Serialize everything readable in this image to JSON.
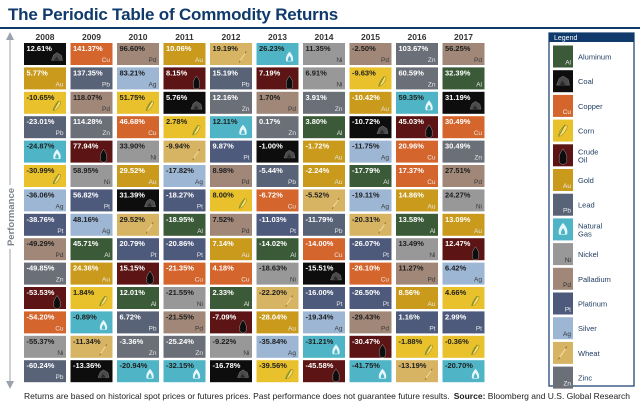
{
  "title": "The Periodic Table of Commodity Returns",
  "footnote": "Returns are based on historical spot prices or futures prices. Past performance does not guarantee future results.",
  "source_label": "Source:",
  "source_text": "Bloomberg and U.S. Global Research",
  "chart_data": {
    "type": "table",
    "ylabel": "Performance",
    "years": [
      "2008",
      "2009",
      "2010",
      "2011",
      "2012",
      "2013",
      "2014",
      "2015",
      "2016",
      "2017"
    ],
    "columns": [
      [
        [
          "Coal",
          "12.61%"
        ],
        [
          "Gold",
          "5.77%"
        ],
        [
          "Corn",
          "-10.65%"
        ],
        [
          "Lead",
          "-23.01%"
        ],
        [
          "Natural Gas",
          "-24.87%"
        ],
        [
          "Corn",
          "-30.99%"
        ],
        [
          "Silver",
          "-36.06%"
        ],
        [
          "Platinum",
          "-38.76%"
        ],
        [
          "Palladium",
          "-49.29%"
        ],
        [
          "Zinc",
          "-49.85%"
        ],
        [
          "Crude Oil",
          "-53.53%"
        ],
        [
          "Copper",
          "-54.20%"
        ],
        [
          "Nickel",
          "-55.37%"
        ],
        [
          "Lead",
          "-60.24%"
        ]
      ],
      [
        [
          "Copper",
          "141.37%"
        ],
        [
          "Lead",
          "137.35%"
        ],
        [
          "Palladium",
          "118.07%"
        ],
        [
          "Zinc",
          "114.28%"
        ],
        [
          "Crude Oil",
          "77.94%"
        ],
        [
          "Nickel",
          "58.95%"
        ],
        [
          "Platinum",
          "56.82%"
        ],
        [
          "Silver",
          "48.16%"
        ],
        [
          "Aluminum",
          "45.71%"
        ],
        [
          "Gold",
          "24.36%"
        ],
        [
          "Corn",
          "1.84%"
        ],
        [
          "Natural Gas",
          "-0.89%"
        ],
        [
          "Wheat",
          "-11.34%"
        ],
        [
          "Coal",
          "-13.36%"
        ]
      ],
      [
        [
          "Palladium",
          "96.60%"
        ],
        [
          "Silver",
          "83.21%"
        ],
        [
          "Corn",
          "51.75%"
        ],
        [
          "Copper",
          "46.68%"
        ],
        [
          "Nickel",
          "33.90%"
        ],
        [
          "Gold",
          "29.52%"
        ],
        [
          "Coal",
          "31.39%"
        ],
        [
          "Wheat",
          "29.52%"
        ],
        [
          "Platinum",
          "20.79%"
        ],
        [
          "Crude Oil",
          "15.15%"
        ],
        [
          "Aluminum",
          "12.01%"
        ],
        [
          "Lead",
          "6.72%"
        ],
        [
          "Zinc",
          "-3.36%"
        ],
        [
          "Natural Gas",
          "-20.94%"
        ]
      ],
      [
        [
          "Gold",
          "10.06%"
        ],
        [
          "Crude Oil",
          "8.15%"
        ],
        [
          "Coal",
          "5.76%"
        ],
        [
          "Corn",
          "2.78%"
        ],
        [
          "Wheat",
          "-9.94%"
        ],
        [
          "Silver",
          "-17.82%"
        ],
        [
          "Platinum",
          "-18.27%"
        ],
        [
          "Aluminum",
          "-18.95%"
        ],
        [
          "Platinum",
          "-20.86%"
        ],
        [
          "Copper",
          "-21.35%"
        ],
        [
          "Nickel",
          "-21.55%"
        ],
        [
          "Palladium",
          "-21.55%"
        ],
        [
          "Zinc",
          "-25.24%"
        ],
        [
          "Natural Gas",
          "-32.15%"
        ]
      ],
      [
        [
          "Wheat",
          "19.19%"
        ],
        [
          "Lead",
          "15.19%"
        ],
        [
          "Zinc",
          "12.16%"
        ],
        [
          "Natural Gas",
          "12.11%"
        ],
        [
          "Platinum",
          "9.87%"
        ],
        [
          "Palladium",
          "8.98%"
        ],
        [
          "Corn",
          "8.00%"
        ],
        [
          "Palladium",
          "7.52%"
        ],
        [
          "Gold",
          "7.14%"
        ],
        [
          "Copper",
          "4.18%"
        ],
        [
          "Aluminum",
          "2.33%"
        ],
        [
          "Crude Oil",
          "-7.09%"
        ],
        [
          "Nickel",
          "-9.22%"
        ],
        [
          "Coal",
          "-16.78%"
        ]
      ],
      [
        [
          "Natural Gas",
          "26.23%"
        ],
        [
          "Crude Oil",
          "7.19%"
        ],
        [
          "Palladium",
          "1.70%"
        ],
        [
          "Zinc",
          "0.17%"
        ],
        [
          "Coal",
          "-1.00%"
        ],
        [
          "Lead",
          "-5.44%"
        ],
        [
          "Copper",
          "-6.72%"
        ],
        [
          "Platinum",
          "-11.03%"
        ],
        [
          "Aluminum",
          "-14.02%"
        ],
        [
          "Nickel",
          "-18.63%"
        ],
        [
          "Wheat",
          "-22.20%"
        ],
        [
          "Gold",
          "-28.04%"
        ],
        [
          "Silver",
          "-35.84%"
        ],
        [
          "Corn",
          "-39.56%"
        ]
      ],
      [
        [
          "Nickel",
          "11.35%"
        ],
        [
          "Nickel",
          "6.91%"
        ],
        [
          "Zinc",
          "3.91%"
        ],
        [
          "Aluminum",
          "3.80%"
        ],
        [
          "Gold",
          "-1.72%"
        ],
        [
          "Gold",
          "-2.24%"
        ],
        [
          "Wheat",
          "-5.52%"
        ],
        [
          "Lead",
          "-11.79%"
        ],
        [
          "Copper",
          "-14.00%"
        ],
        [
          "Coal",
          "-15.51%"
        ],
        [
          "Platinum",
          "-16.00%"
        ],
        [
          "Silver",
          "-19.34%"
        ],
        [
          "Natural Gas",
          "-31.21%"
        ],
        [
          "Crude Oil",
          "-45.58%"
        ]
      ],
      [
        [
          "Palladium",
          "-2.50%"
        ],
        [
          "Corn",
          "-9.63%"
        ],
        [
          "Gold",
          "-10.42%"
        ],
        [
          "Coal",
          "-10.72%"
        ],
        [
          "Silver",
          "-11.75%"
        ],
        [
          "Aluminum",
          "-17.79%"
        ],
        [
          "Silver",
          "-19.11%"
        ],
        [
          "Wheat",
          "-20.31%"
        ],
        [
          "Platinum",
          "-26.07%"
        ],
        [
          "Copper",
          "-26.10%"
        ],
        [
          "Platinum",
          "-26.50%"
        ],
        [
          "Palladium",
          "-29.43%"
        ],
        [
          "Crude Oil",
          "-30.47%"
        ],
        [
          "Natural Gas",
          "-41.75%"
        ]
      ],
      [
        [
          "Zinc",
          "103.67%"
        ],
        [
          "Zinc",
          "60.59%"
        ],
        [
          "Natural Gas",
          "59.35%"
        ],
        [
          "Crude Oil",
          "45.03%"
        ],
        [
          "Copper",
          "20.96%"
        ],
        [
          "Copper",
          "17.37%"
        ],
        [
          "Gold",
          "14.86%"
        ],
        [
          "Aluminum",
          "13.58%"
        ],
        [
          "Nickel",
          "13.49%"
        ],
        [
          "Palladium",
          "11.27%"
        ],
        [
          "Gold",
          "8.56%"
        ],
        [
          "Platinum",
          "1.16%"
        ],
        [
          "Corn",
          "-1.88%"
        ],
        [
          "Wheat",
          "-13.19%"
        ]
      ],
      [
        [
          "Palladium",
          "56.25%"
        ],
        [
          "Aluminum",
          "32.39%"
        ],
        [
          "Coal",
          "31.19%"
        ],
        [
          "Copper",
          "30.49%"
        ],
        [
          "Zinc",
          "30.49%"
        ],
        [
          "Palladium",
          "27.51%"
        ],
        [
          "Nickel",
          "24.27%"
        ],
        [
          "Gold",
          "13.09%"
        ],
        [
          "Crude Oil",
          "12.47%"
        ],
        [
          "Silver",
          "6.42%"
        ],
        [
          "Corn",
          "4.66%"
        ],
        [
          "Platinum",
          "2.99%"
        ],
        [
          "Corn",
          "-0.36%"
        ],
        [
          "Natural Gas",
          "-20.70%"
        ]
      ]
    ],
    "legend_title": "Legend",
    "legend": [
      {
        "name": "Aluminum",
        "abbr": "Al",
        "color": "#3b5a37"
      },
      {
        "name": "Coal",
        "abbr": "",
        "color": "#0d0d0d"
      },
      {
        "name": "Copper",
        "abbr": "Cu",
        "color": "#d4652d"
      },
      {
        "name": "Corn",
        "abbr": "",
        "color": "#e9c12c"
      },
      {
        "name": "Crude Oil",
        "abbr": "",
        "color": "#5c1414"
      },
      {
        "name": "Gold",
        "abbr": "Au",
        "color": "#c99a1b"
      },
      {
        "name": "Lead",
        "abbr": "Pb",
        "color": "#596378"
      },
      {
        "name": "Natural Gas",
        "abbr": "",
        "color": "#4fb4c5"
      },
      {
        "name": "Nickel",
        "abbr": "Ni",
        "color": "#989898"
      },
      {
        "name": "Palladium",
        "abbr": "Pd",
        "color": "#a08778"
      },
      {
        "name": "Platinum",
        "abbr": "Pt",
        "color": "#4e5a7c"
      },
      {
        "name": "Silver",
        "abbr": "Ag",
        "color": "#9cb6d4"
      },
      {
        "name": "Wheat",
        "abbr": "",
        "color": "#d6b463"
      },
      {
        "name": "Zinc",
        "abbr": "Zn",
        "color": "#6a6f78"
      }
    ]
  }
}
